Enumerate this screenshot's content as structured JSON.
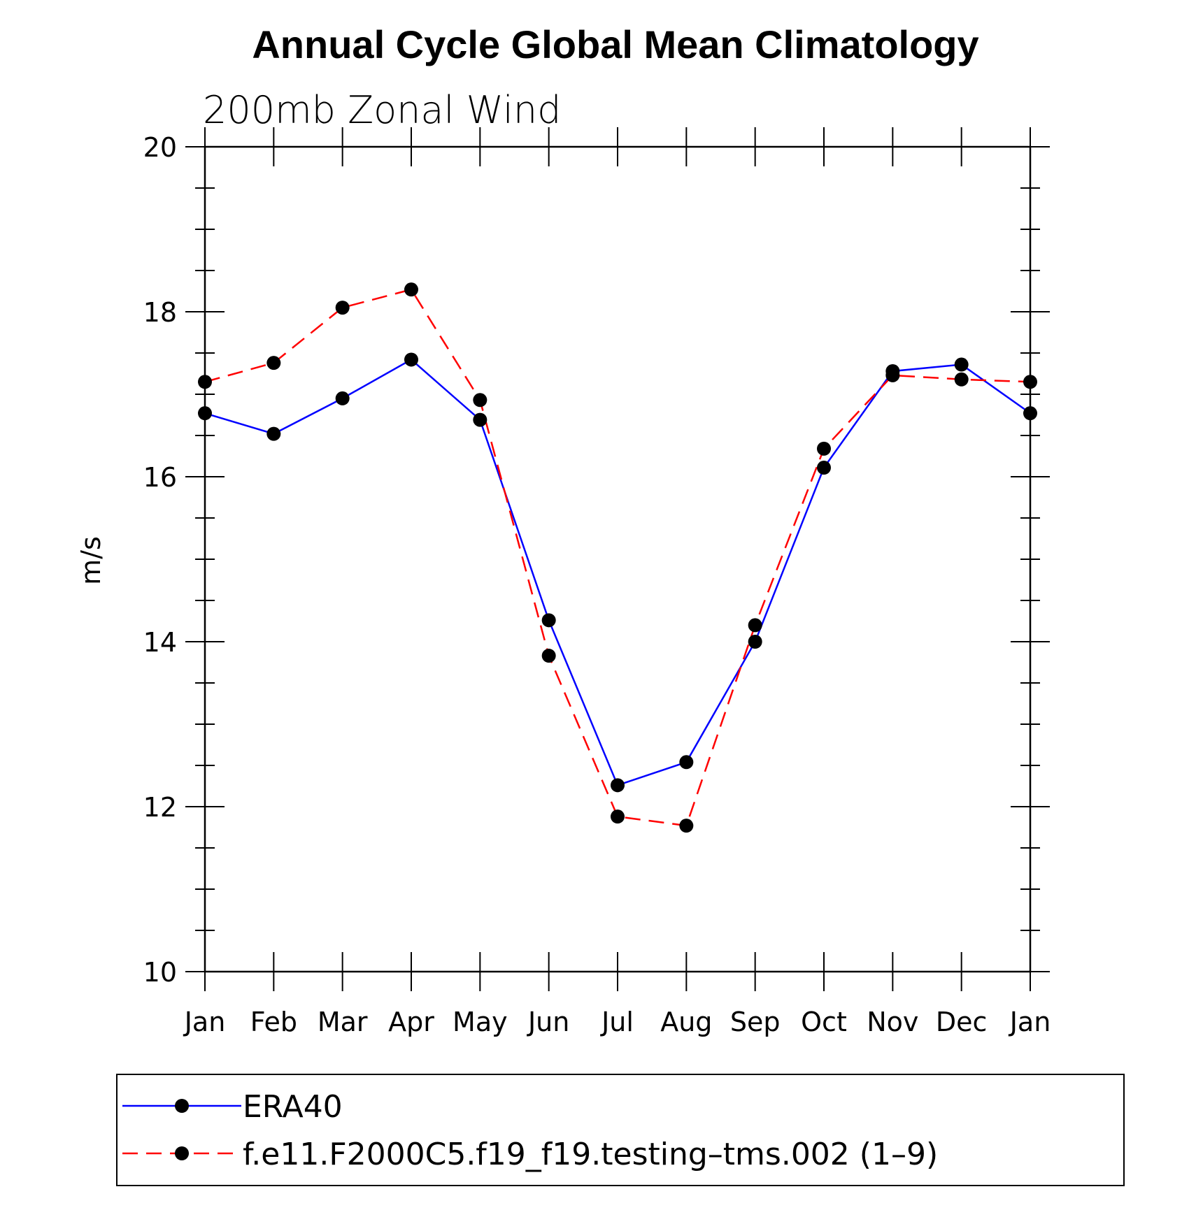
{
  "chart_data": {
    "type": "line",
    "title": "Annual Cycle Global Mean Climatology",
    "subtitle": "200mb Zonal Wind",
    "xlabel": "",
    "ylabel": "m/s",
    "categories": [
      "Jan",
      "Feb",
      "Mar",
      "Apr",
      "May",
      "Jun",
      "Jul",
      "Aug",
      "Sep",
      "Oct",
      "Nov",
      "Dec",
      "Jan"
    ],
    "ylim": [
      10,
      20
    ],
    "yticks": [
      10,
      12,
      14,
      16,
      18,
      20
    ],
    "grid": false,
    "legend_position": "bottom",
    "series": [
      {
        "name": "ERA40",
        "color": "#0000ff",
        "dash": "solid",
        "marker": "circle",
        "values": [
          16.77,
          16.52,
          16.95,
          17.42,
          16.69,
          14.26,
          12.26,
          12.54,
          14.0,
          16.11,
          17.28,
          17.36,
          16.77
        ]
      },
      {
        "name": "f.e11.F2000C5.f19_f19.testing–tms.002 (1–9)",
        "color": "#ff0000",
        "dash": "dashed",
        "marker": "circle",
        "values": [
          17.15,
          17.38,
          18.05,
          18.27,
          16.93,
          13.83,
          11.88,
          11.77,
          14.2,
          16.34,
          17.23,
          17.18,
          17.15
        ]
      }
    ]
  }
}
